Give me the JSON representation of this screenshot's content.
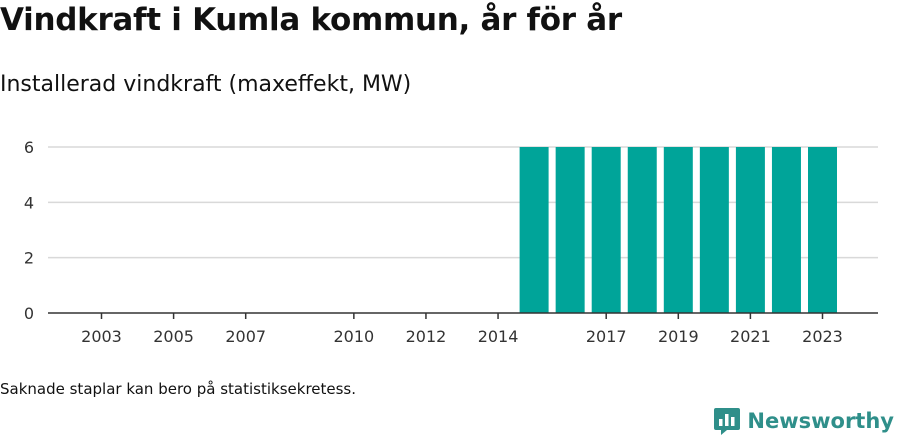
{
  "title": "Vindkraft i Kumla kommun, år för år",
  "subtitle": "Installerad vindkraft (maxeffekt, MW)",
  "footnote": "Saknade staplar kan bero på statistiksekretess.",
  "brand": {
    "name": "Newsworthy",
    "icon": "newsworthy-logo-icon",
    "color": "#2f8f8a"
  },
  "chart_data": {
    "type": "bar",
    "title": "Vindkraft i Kumla kommun, år för år",
    "subtitle": "Installerad vindkraft (maxeffekt, MW)",
    "categories": [
      "2003",
      "2004",
      "2005",
      "2006",
      "2007",
      "2008",
      "2009",
      "2010",
      "2011",
      "2012",
      "2013",
      "2014",
      "2015",
      "2016",
      "2017",
      "2018",
      "2019",
      "2020",
      "2021",
      "2022",
      "2023"
    ],
    "values": [
      0,
      0,
      0,
      0,
      0,
      0,
      0,
      0,
      0,
      0,
      0,
      0,
      6,
      6,
      6,
      6,
      6,
      6,
      6,
      6,
      6
    ],
    "x_tick_labels": [
      "2003",
      "2005",
      "2007",
      "2010",
      "2012",
      "2014",
      "2017",
      "2019",
      "2021",
      "2023"
    ],
    "y_ticks": [
      0,
      2,
      4,
      6
    ],
    "ylim": [
      0,
      6
    ],
    "xlabel": "",
    "ylabel": "",
    "bar_color": "#00a499",
    "grid": true,
    "legend": false
  }
}
